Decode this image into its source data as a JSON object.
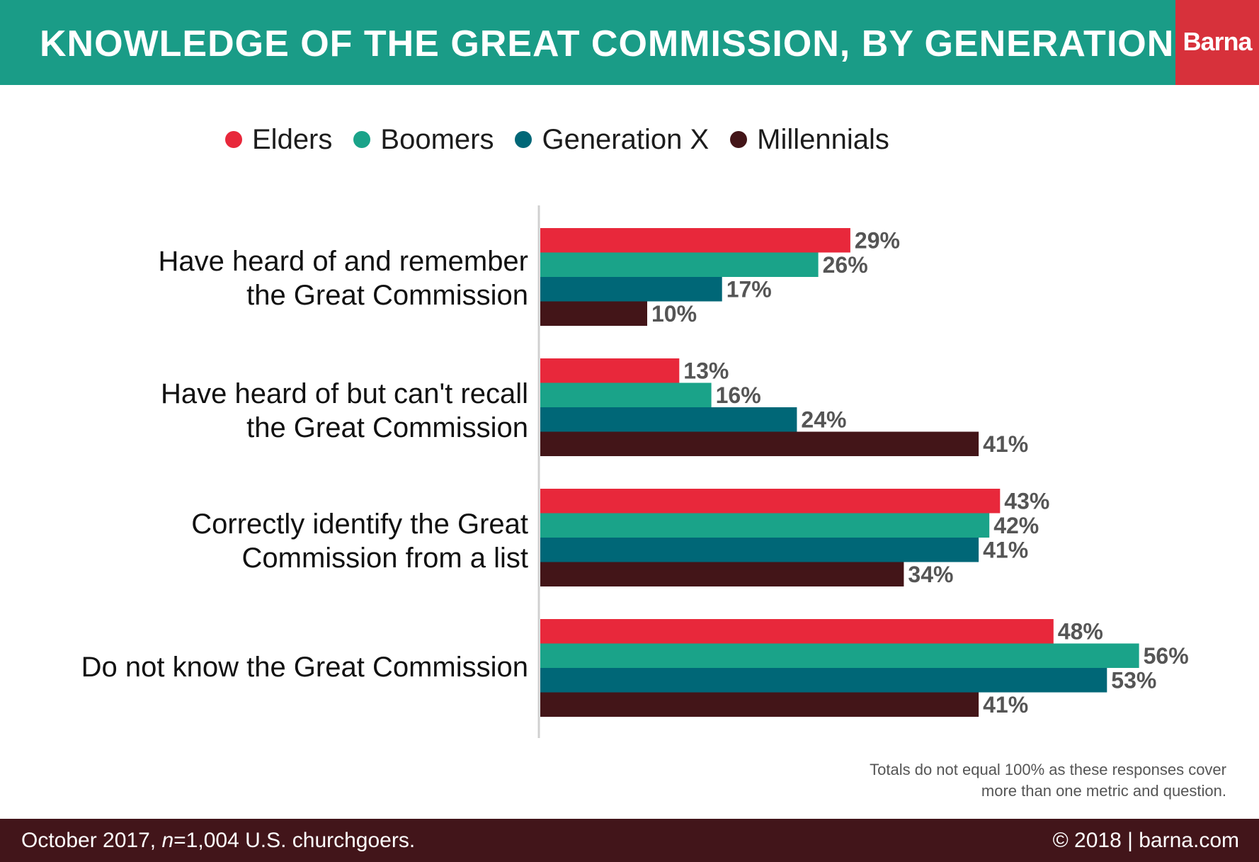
{
  "header": {
    "title": "KNOWLEDGE OF THE GREAT COMMISSION, BY GENERATION",
    "logo": "Barna"
  },
  "colors": {
    "header_bg": "#1a9c87",
    "logo_bg": "#d7313b",
    "footer_bg": "#42151a"
  },
  "chart_data": {
    "type": "bar",
    "orientation": "horizontal",
    "categories": [
      [
        "Have heard of and remember",
        "the Great Commission"
      ],
      [
        "Have heard of but can't recall",
        "the Great Commission"
      ],
      [
        "Correctly identify the Great",
        "Commission from a list"
      ],
      [
        "Do not know the Great Commission"
      ]
    ],
    "series": [
      {
        "name": "Elders",
        "color": "#e8283b",
        "values": [
          29,
          13,
          43,
          48
        ]
      },
      {
        "name": "Boomers",
        "color": "#1aa389",
        "values": [
          26,
          16,
          42,
          56
        ]
      },
      {
        "name": "Generation X",
        "color": "#006777",
        "values": [
          17,
          24,
          41,
          53
        ]
      },
      {
        "name": "Millennials",
        "color": "#431518",
        "values": [
          10,
          41,
          34,
          41
        ]
      }
    ],
    "value_suffix": "%",
    "legend_position": "top",
    "grid": false
  },
  "note": [
    "Totals do not equal 100% as these responses cover",
    "more than one metric and question."
  ],
  "footer": {
    "source": "October 2017, n=1,004 U.S. churchgoers.",
    "copyright": "© 2018 | barna.com"
  }
}
